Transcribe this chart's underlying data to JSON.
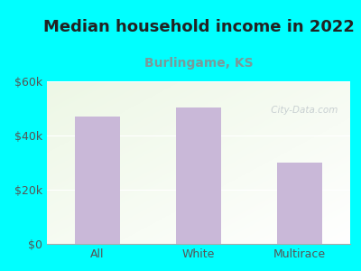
{
  "title": "Median household income in 2022",
  "subtitle": "Burlingame, KS",
  "categories": [
    "All",
    "White",
    "Multirace"
  ],
  "values": [
    47000,
    50500,
    30000
  ],
  "bar_color": "#c9b8d8",
  "title_fontsize": 13,
  "title_color": "#222222",
  "subtitle_fontsize": 10,
  "subtitle_color": "#7a9a9a",
  "tick_label_color": "#555555",
  "background_outer": "#00ffff",
  "ylim": [
    0,
    60000
  ],
  "yticks": [
    0,
    20000,
    40000,
    60000
  ],
  "ytick_labels": [
    "$0",
    "$20k",
    "$40k",
    "$60k"
  ],
  "watermark": " City-Data.com"
}
